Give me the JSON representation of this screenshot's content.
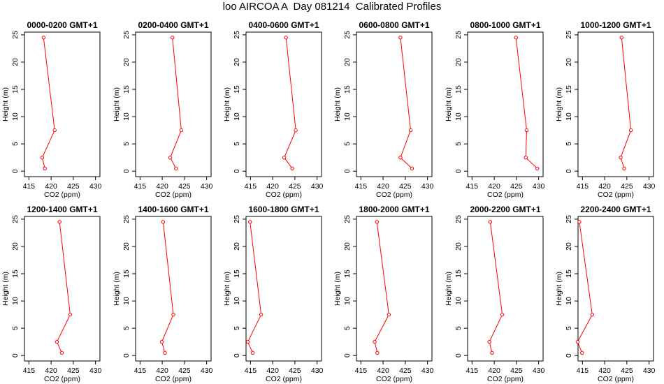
{
  "page": {
    "title": "loo AIRCOA A  Day 081214  Calibrated Profiles"
  },
  "colors": {
    "series": "#ff0000",
    "axes": "#000000",
    "background": "#ffffff"
  },
  "chart_data": {
    "type": "line",
    "layout": "2x6 small multiples",
    "xlabel": "CO2 (ppm)",
    "ylabel": "Height (m)",
    "xlim": [
      414,
      431
    ],
    "ylim": [
      -1,
      25.5
    ],
    "xticks": [
      415,
      420,
      425,
      430
    ],
    "yticks": [
      0,
      5,
      10,
      15,
      20,
      25
    ],
    "heights": [
      24.5,
      7.5,
      2.5,
      0.5
    ],
    "marker": "open-circle",
    "grid": false,
    "panels": [
      {
        "title": "0000-0200 GMT+1",
        "co2": [
          418.3,
          420.8,
          418.0,
          418.6
        ]
      },
      {
        "title": "0200-0400 GMT+1",
        "co2": [
          422.3,
          424.3,
          421.8,
          423.1
        ]
      },
      {
        "title": "0400-0600 GMT+1",
        "co2": [
          423.0,
          425.2,
          422.6,
          424.4
        ]
      },
      {
        "title": "0600-0800 GMT+1",
        "co2": [
          423.9,
          426.2,
          423.9,
          426.5
        ]
      },
      {
        "title": "0800-1000 GMT+1",
        "co2": [
          424.9,
          427.3,
          427.1,
          429.7
        ]
      },
      {
        "title": "1000-1200 GMT+1",
        "co2": [
          423.8,
          425.9,
          423.6,
          424.4
        ]
      },
      {
        "title": "1200-1400 GMT+1",
        "co2": [
          421.9,
          424.3,
          421.3,
          422.4
        ]
      },
      {
        "title": "1400-1600 GMT+1",
        "co2": [
          420.2,
          422.5,
          419.9,
          420.6
        ]
      },
      {
        "title": "1600-1800 GMT+1",
        "co2": [
          414.9,
          417.4,
          414.4,
          415.5
        ]
      },
      {
        "title": "1800-2000 GMT+1",
        "co2": [
          418.6,
          421.3,
          418.1,
          418.7
        ]
      },
      {
        "title": "2000-2200 GMT+1",
        "co2": [
          419.1,
          421.8,
          418.9,
          419.5
        ]
      },
      {
        "title": "2200-2400 GMT+1",
        "co2": [
          414.3,
          417.2,
          413.9,
          414.9
        ]
      }
    ]
  }
}
